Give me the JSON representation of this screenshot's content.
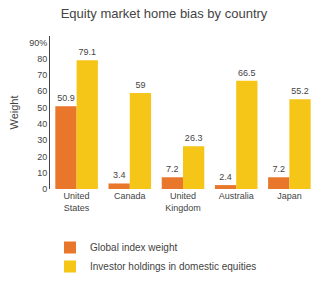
{
  "chart_data": {
    "type": "bar",
    "title": "Equity market home bias by country",
    "categories": [
      "United\nStates",
      "Canada",
      "United\nKingdom",
      "Australia",
      "Japan"
    ],
    "series": [
      {
        "name": "Global index weight",
        "color": "#E8762B",
        "values": [
          50.9,
          3.4,
          7.2,
          2.4,
          7.2
        ]
      },
      {
        "name": "Investor holdings in domestic equities",
        "color": "#F5C518",
        "values": [
          79.1,
          59,
          26.3,
          66.5,
          55.2
        ]
      }
    ],
    "ylabel": "Weight",
    "ylim": [
      0,
      94
    ],
    "yticks": [
      0,
      10,
      20,
      30,
      40,
      50,
      60,
      70,
      80,
      {
        "value": 90,
        "label": "90%"
      }
    ],
    "grid": false,
    "legend": "bottom",
    "data_labels": true
  }
}
